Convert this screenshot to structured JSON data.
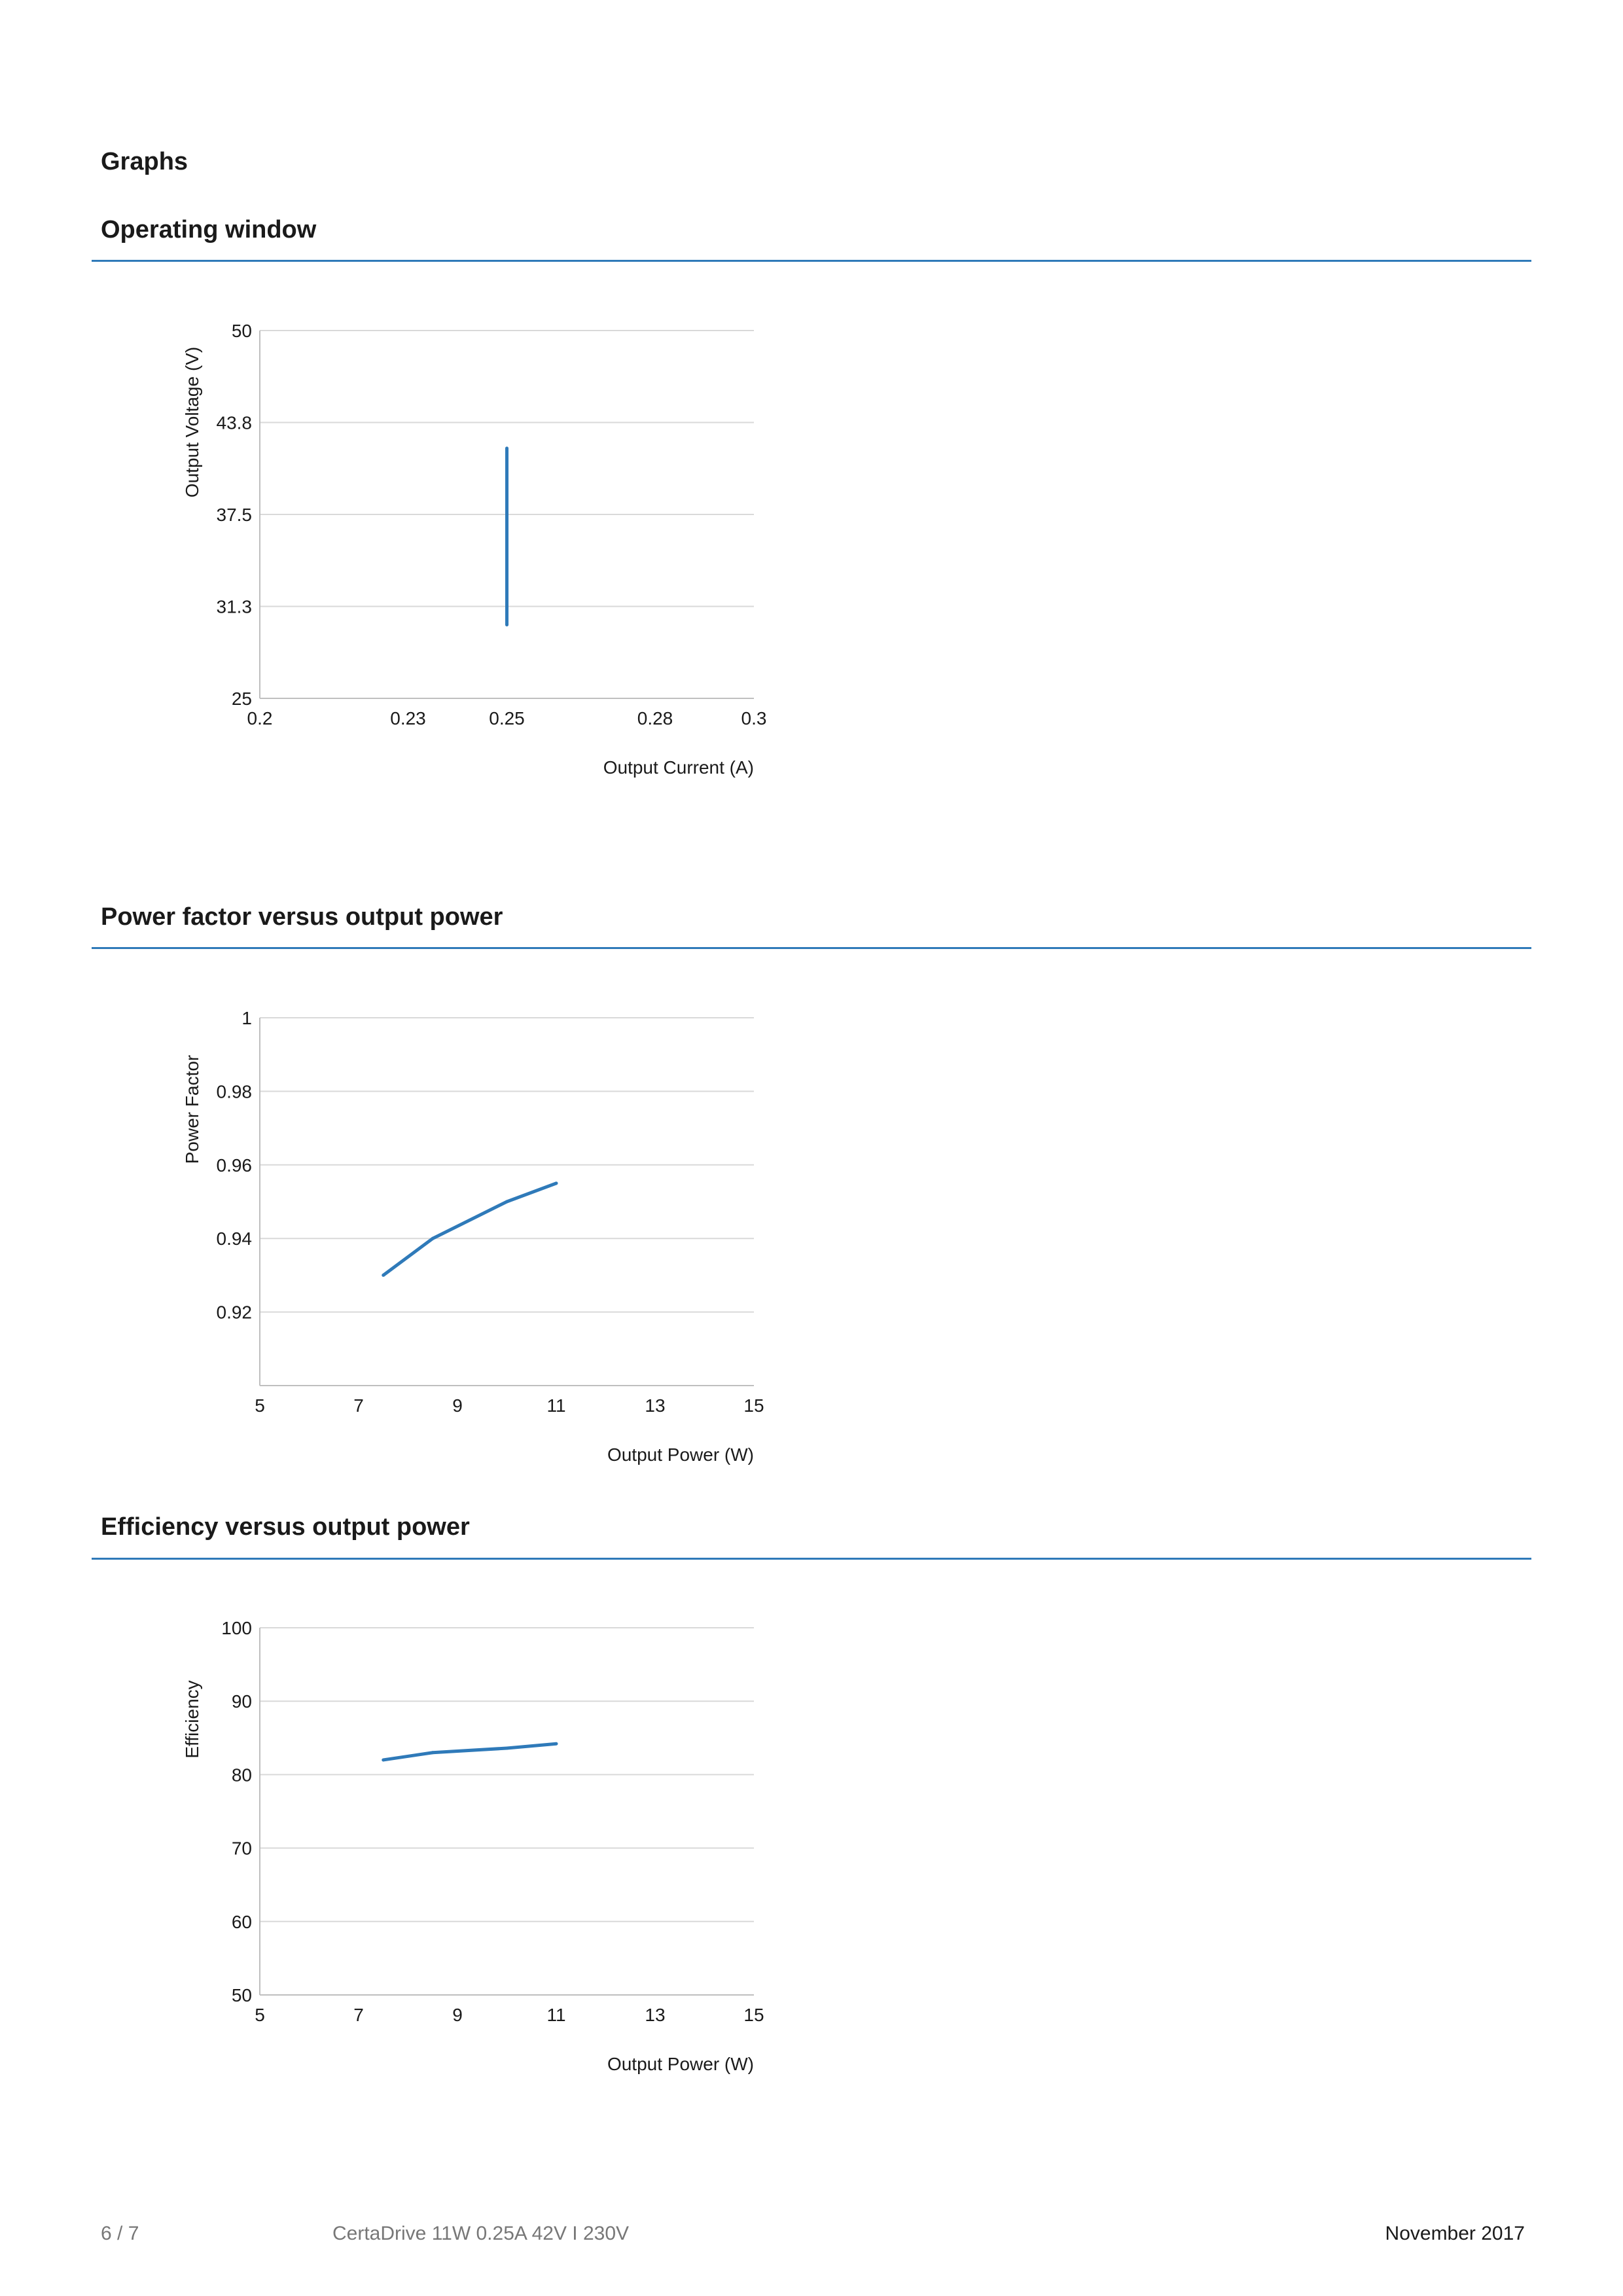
{
  "page": {
    "heading": "Graphs"
  },
  "sections": [
    {
      "title": "Operating window"
    },
    {
      "title": "Power factor versus output power"
    },
    {
      "title": "Efficiency versus output power"
    }
  ],
  "chart_data": [
    {
      "type": "line",
      "xlabel": "Output Current (A)",
      "ylabel": "Output Voltage (V)",
      "xlim": [
        0.2,
        0.3
      ],
      "ylim": [
        25,
        50
      ],
      "xticks": [
        0.2,
        0.23,
        0.25,
        0.28,
        0.3
      ],
      "xtick_labels": [
        "0.2",
        "0.23",
        "0.25",
        "0.28",
        "0.3"
      ],
      "yticks": [
        25,
        31.25,
        37.5,
        43.75,
        50
      ],
      "ytick_labels": [
        "25",
        "31.3",
        "37.5",
        "43.8",
        "50"
      ],
      "grid": true,
      "line_color": "#2f7ab9",
      "series": [
        {
          "x": [
            0.25,
            0.25
          ],
          "y": [
            30,
            42
          ]
        }
      ]
    },
    {
      "type": "line",
      "xlabel": "Output Power (W)",
      "ylabel": "Power Factor",
      "xlim": [
        5,
        15
      ],
      "ylim": [
        0.9,
        1
      ],
      "xticks": [
        5,
        7,
        9,
        11,
        13,
        15
      ],
      "xtick_labels": [
        "5",
        "7",
        "9",
        "11",
        "13",
        "15"
      ],
      "yticks": [
        0.92,
        0.94,
        0.96,
        0.98,
        1
      ],
      "ytick_labels": [
        "0.92",
        "0.94",
        "0.96",
        "0.98",
        "1"
      ],
      "grid": true,
      "line_color": "#2f7ab9",
      "series": [
        {
          "x": [
            7.5,
            8.5,
            10,
            11
          ],
          "y": [
            0.93,
            0.94,
            0.95,
            0.955
          ]
        }
      ]
    },
    {
      "type": "line",
      "xlabel": "Output Power (W)",
      "ylabel": "Efficiency",
      "xlim": [
        5,
        15
      ],
      "ylim": [
        50,
        100
      ],
      "xticks": [
        5,
        7,
        9,
        11,
        13,
        15
      ],
      "xtick_labels": [
        "5",
        "7",
        "9",
        "11",
        "13",
        "15"
      ],
      "yticks": [
        50,
        60,
        70,
        80,
        90,
        100
      ],
      "ytick_labels": [
        "50",
        "60",
        "70",
        "80",
        "90",
        "100"
      ],
      "grid": true,
      "line_color": "#2f7ab9",
      "series": [
        {
          "x": [
            7.5,
            8.5,
            10,
            11
          ],
          "y": [
            82,
            83,
            83.6,
            84.2
          ]
        }
      ]
    }
  ],
  "footer": {
    "page_number": "6 / 7",
    "product": "CertaDrive 11W 0.25A 42V I 230V",
    "date": "November 2017"
  }
}
